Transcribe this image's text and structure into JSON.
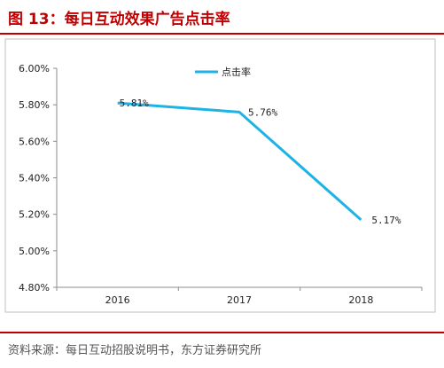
{
  "figure": {
    "title": "图 13：每日互动效果广告点击率",
    "source": "资料来源：每日互动招股说明书，东方证券研究所"
  },
  "colors": {
    "title": "#c00000",
    "series": "#1fb2e5",
    "axis": "#8c8c8c"
  },
  "chart_data": {
    "type": "line",
    "categories": [
      "2016",
      "2017",
      "2018"
    ],
    "series": [
      {
        "name": "点击率",
        "values": [
          5.81,
          5.76,
          5.17
        ],
        "labels": [
          "5.81%",
          "5.76%",
          "5.17%"
        ]
      }
    ],
    "yticks": [
      "6.00%",
      "5.80%",
      "5.60%",
      "5.40%",
      "5.20%",
      "5.00%",
      "4.80%"
    ],
    "ylim": [
      4.8,
      6.0
    ],
    "grid": false,
    "legend": "top-center"
  }
}
